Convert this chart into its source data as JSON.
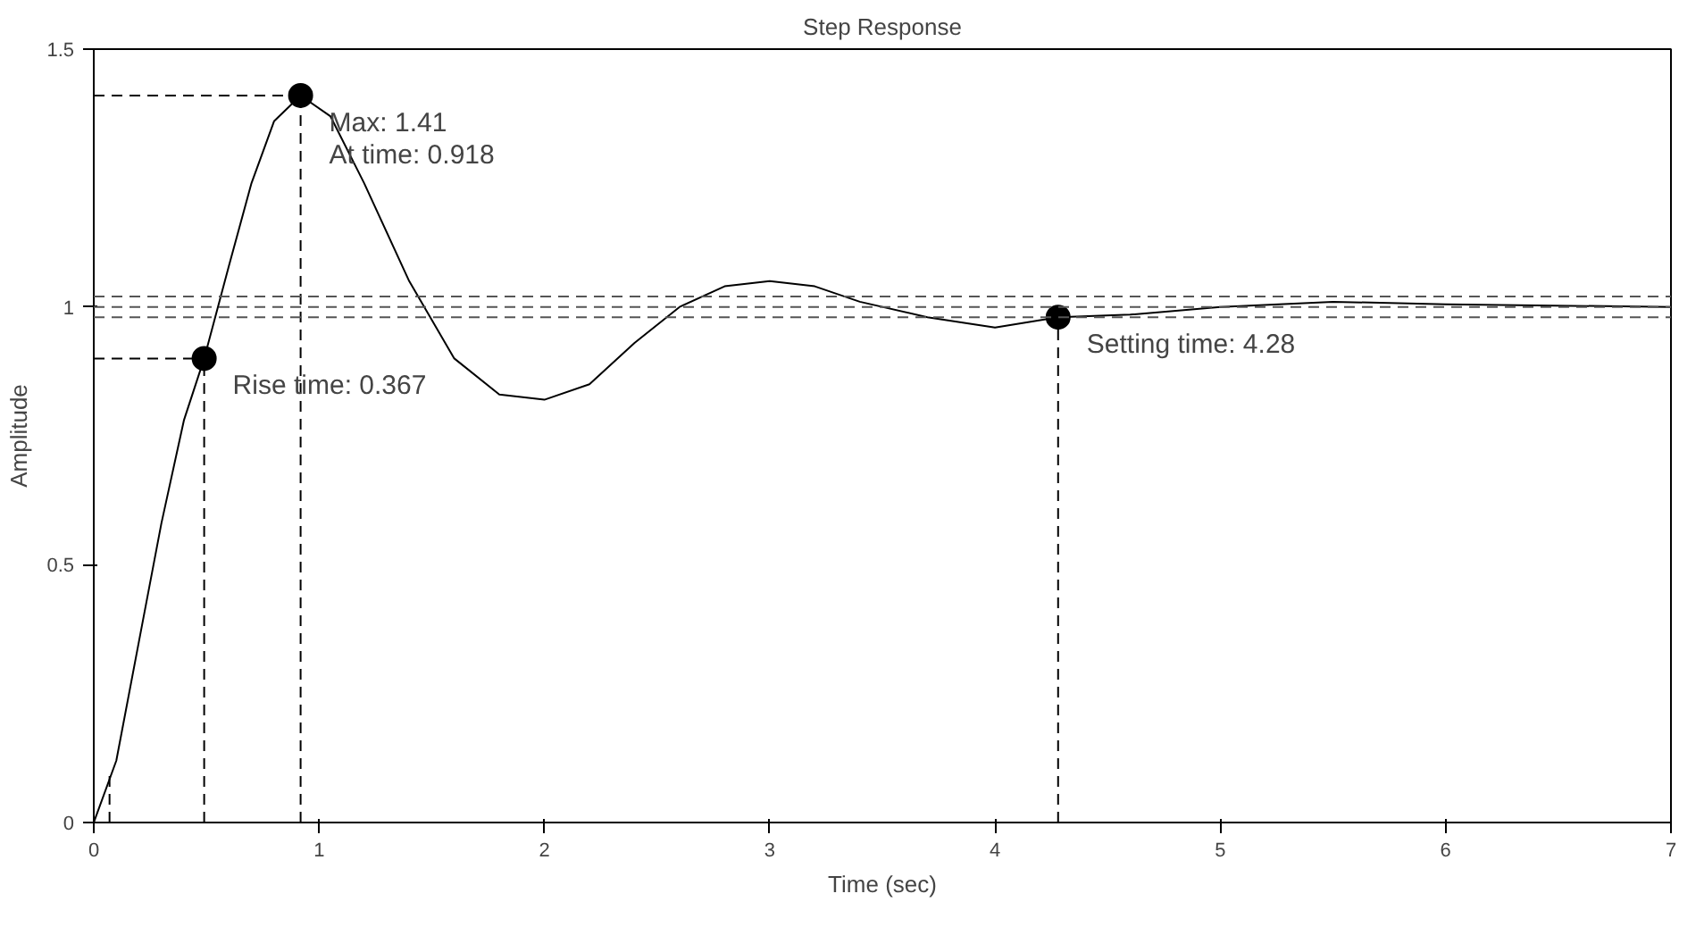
{
  "chart_data": {
    "type": "line",
    "title": "Step Response",
    "xlabel": "Time (sec)",
    "ylabel": "Amplitude",
    "xlim": [
      0,
      7
    ],
    "xticks": [
      0,
      1,
      2,
      3,
      4,
      5,
      6,
      7
    ],
    "ylim": [
      0,
      1.5
    ],
    "yticks": [
      0,
      0.5,
      1,
      1.5
    ],
    "grid": false,
    "series": [
      {
        "color": "#000000",
        "line_style": "solid",
        "x": [
          0,
          0.1,
          0.2,
          0.3,
          0.4,
          0.49,
          0.6,
          0.7,
          0.8,
          0.918,
          1.05,
          1.2,
          1.4,
          1.6,
          1.8,
          2.0,
          2.2,
          2.4,
          2.6,
          2.8,
          3.0,
          3.2,
          3.4,
          3.7,
          4.0,
          4.28,
          4.6,
          5.0,
          5.5,
          6.0,
          7.0
        ],
        "values": [
          0,
          0.12,
          0.35,
          0.58,
          0.78,
          0.9,
          1.08,
          1.24,
          1.36,
          1.41,
          1.37,
          1.24,
          1.05,
          0.9,
          0.83,
          0.82,
          0.85,
          0.93,
          1.0,
          1.04,
          1.05,
          1.04,
          1.01,
          0.98,
          0.96,
          0.98,
          0.985,
          1.0,
          1.01,
          1.005,
          1.0
        ]
      },
      {
        "type": "line",
        "color": "#000000",
        "line_style": "dashed",
        "x": [
          0.07,
          0.07
        ],
        "values": [
          0,
          0.1
        ]
      },
      {
        "type": "line",
        "color": "#000000",
        "line_style": "dashed",
        "x": [
          0.49,
          0.49
        ],
        "values": [
          0,
          0.9
        ]
      },
      {
        "type": "line",
        "color": "#000000",
        "line_style": "dashed",
        "x": [
          0,
          0.49
        ],
        "values": [
          0.9,
          0.9
        ]
      },
      {
        "type": "line",
        "color": "#000000",
        "line_style": "dashed",
        "x": [
          0.918,
          0.918
        ],
        "values": [
          0,
          1.41
        ]
      },
      {
        "type": "line",
        "color": "#000000",
        "line_style": "dashed",
        "x": [
          0,
          0.918
        ],
        "values": [
          1.41,
          1.41
        ]
      },
      {
        "type": "line",
        "color": "#000000",
        "line_style": "dashed",
        "x": [
          4.28,
          4.28
        ],
        "values": [
          0,
          0.98
        ]
      },
      {
        "type": "scatter",
        "color": "#000000",
        "marker": "circle",
        "x": [
          0.49,
          0.918,
          4.28
        ],
        "values": [
          0.9,
          1.41,
          0.98
        ]
      }
    ],
    "ref_lines": [
      {
        "axis": "y",
        "value": 1,
        "line_style": "dashed",
        "color": "#555555"
      },
      {
        "axis": "y",
        "value": 0.98,
        "line_style": "dashed",
        "color": "#555555"
      },
      {
        "axis": "y",
        "value": 1.02,
        "line_style": "dashed",
        "color": "#555555"
      }
    ],
    "annotations": [
      {
        "text": "Rise time: 0.367",
        "x": 0.49,
        "y": 0.9
      },
      {
        "text": "Max: 1.41\nAt time: 0.918",
        "x": 0.918,
        "y": 1.41
      },
      {
        "text": "Setting time: 4.28",
        "x": 4.28,
        "y": 0.98
      }
    ]
  }
}
